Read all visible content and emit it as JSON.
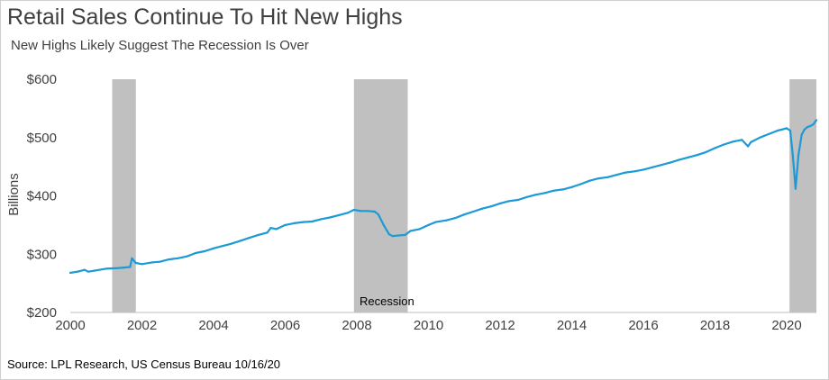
{
  "chart_data": {
    "type": "line",
    "title": "Retail Sales Continue To Hit New Highs",
    "subtitle": "New Highs Likely Suggest The Recession Is Over",
    "ylabel": "Billions",
    "source": "Source: LPL Research, US Census Bureau 10/16/20",
    "xlim": [
      2000,
      2020.83
    ],
    "ylim": [
      200,
      600
    ],
    "x_ticks": [
      2000,
      2002,
      2004,
      2006,
      2008,
      2010,
      2012,
      2014,
      2016,
      2018,
      2020
    ],
    "x_tick_labels": [
      "2000",
      "2002",
      "2004",
      "2006",
      "2008",
      "2010",
      "2012",
      "2014",
      "2016",
      "2018",
      "2020"
    ],
    "y_ticks": [
      200,
      300,
      400,
      500,
      600
    ],
    "y_tick_labels": [
      "$200",
      "$300",
      "$400",
      "$500",
      "$600"
    ],
    "grid": false,
    "line_color": "#1b9ad6",
    "shade_color": "#c0c0c0",
    "recession_label": "Recession",
    "recessions": [
      {
        "start": 2001.17,
        "end": 2001.83
      },
      {
        "start": 2007.92,
        "end": 2009.42
      },
      {
        "start": 2020.08,
        "end": 2020.83
      }
    ],
    "series": [
      {
        "values": [
          [
            2000.0,
            268
          ],
          [
            2000.2,
            270
          ],
          [
            2000.4,
            273
          ],
          [
            2000.5,
            270
          ],
          [
            2000.7,
            272
          ],
          [
            2000.9,
            274
          ],
          [
            2001.0,
            275
          ],
          [
            2001.3,
            276
          ],
          [
            2001.5,
            277
          ],
          [
            2001.67,
            278
          ],
          [
            2001.72,
            293
          ],
          [
            2001.83,
            285
          ],
          [
            2002.0,
            283
          ],
          [
            2002.3,
            286
          ],
          [
            2002.5,
            287
          ],
          [
            2002.75,
            291
          ],
          [
            2003.0,
            293
          ],
          [
            2003.25,
            296
          ],
          [
            2003.5,
            302
          ],
          [
            2003.75,
            305
          ],
          [
            2004.0,
            310
          ],
          [
            2004.25,
            314
          ],
          [
            2004.5,
            318
          ],
          [
            2004.75,
            323
          ],
          [
            2005.0,
            328
          ],
          [
            2005.25,
            333
          ],
          [
            2005.5,
            337
          ],
          [
            2005.6,
            345
          ],
          [
            2005.75,
            343
          ],
          [
            2006.0,
            350
          ],
          [
            2006.25,
            353
          ],
          [
            2006.5,
            355
          ],
          [
            2006.75,
            356
          ],
          [
            2007.0,
            360
          ],
          [
            2007.25,
            363
          ],
          [
            2007.5,
            367
          ],
          [
            2007.75,
            371
          ],
          [
            2007.92,
            376
          ],
          [
            2008.1,
            374
          ],
          [
            2008.3,
            374
          ],
          [
            2008.5,
            373
          ],
          [
            2008.6,
            368
          ],
          [
            2008.75,
            350
          ],
          [
            2008.9,
            334
          ],
          [
            2009.0,
            331
          ],
          [
            2009.17,
            332
          ],
          [
            2009.35,
            333
          ],
          [
            2009.5,
            340
          ],
          [
            2009.75,
            343
          ],
          [
            2010.0,
            350
          ],
          [
            2010.2,
            355
          ],
          [
            2010.5,
            358
          ],
          [
            2010.75,
            362
          ],
          [
            2011.0,
            368
          ],
          [
            2011.25,
            373
          ],
          [
            2011.5,
            378
          ],
          [
            2011.75,
            382
          ],
          [
            2012.0,
            387
          ],
          [
            2012.25,
            391
          ],
          [
            2012.5,
            393
          ],
          [
            2012.75,
            398
          ],
          [
            2013.0,
            402
          ],
          [
            2013.25,
            405
          ],
          [
            2013.5,
            409
          ],
          [
            2013.75,
            411
          ],
          [
            2014.0,
            415
          ],
          [
            2014.25,
            420
          ],
          [
            2014.5,
            426
          ],
          [
            2014.75,
            430
          ],
          [
            2015.0,
            432
          ],
          [
            2015.25,
            436
          ],
          [
            2015.5,
            440
          ],
          [
            2015.75,
            442
          ],
          [
            2016.0,
            445
          ],
          [
            2016.25,
            449
          ],
          [
            2016.5,
            453
          ],
          [
            2016.75,
            457
          ],
          [
            2017.0,
            462
          ],
          [
            2017.25,
            466
          ],
          [
            2017.5,
            470
          ],
          [
            2017.75,
            475
          ],
          [
            2018.0,
            482
          ],
          [
            2018.25,
            488
          ],
          [
            2018.5,
            493
          ],
          [
            2018.75,
            496
          ],
          [
            2018.92,
            485
          ],
          [
            2019.0,
            492
          ],
          [
            2019.25,
            500
          ],
          [
            2019.5,
            506
          ],
          [
            2019.75,
            512
          ],
          [
            2020.0,
            516
          ],
          [
            2020.1,
            512
          ],
          [
            2020.17,
            470
          ],
          [
            2020.25,
            412
          ],
          [
            2020.33,
            470
          ],
          [
            2020.42,
            505
          ],
          [
            2020.5,
            514
          ],
          [
            2020.58,
            518
          ],
          [
            2020.67,
            520
          ],
          [
            2020.75,
            523
          ],
          [
            2020.83,
            530
          ]
        ]
      }
    ]
  }
}
